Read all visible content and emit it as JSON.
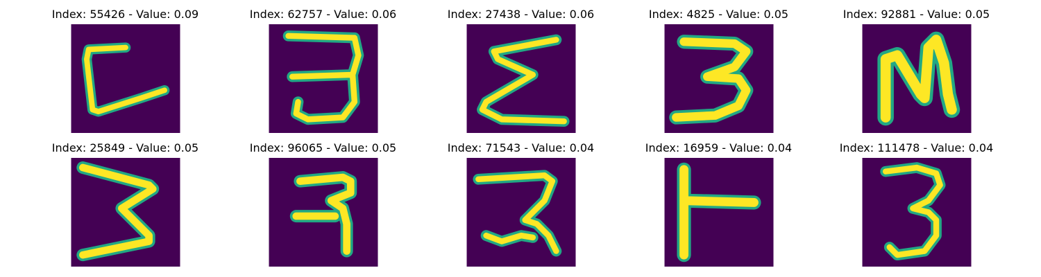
{
  "colormap": {
    "background": "#440154",
    "low": "#2a788e",
    "mid": "#22a884",
    "high": "#fde725"
  },
  "images": [
    {
      "title": "Index: 55426 - Value: 0.09",
      "glyph": "C-like stroke"
    },
    {
      "title": "Index: 62757 - Value: 0.06",
      "glyph": "3"
    },
    {
      "title": "Index: 27438 - Value: 0.06",
      "glyph": "sigma-like stroke"
    },
    {
      "title": "Index: 4825 - Value: 0.05",
      "glyph": "3"
    },
    {
      "title": "Index: 92881 - Value: 0.05",
      "glyph": "N-like stroke"
    },
    {
      "title": "Index: 25849 - Value: 0.05",
      "glyph": "reversed-E stroke"
    },
    {
      "title": "Index: 96065 - Value: 0.05",
      "glyph": "devanagari-ra-like stroke"
    },
    {
      "title": "Index: 71543 - Value: 0.04",
      "glyph": "devanagari-ra-like stroke"
    },
    {
      "title": "Index: 16959 - Value: 0.04",
      "glyph": "T-like stroke"
    },
    {
      "title": "Index: 111478 - Value: 0.04",
      "glyph": "3"
    }
  ]
}
